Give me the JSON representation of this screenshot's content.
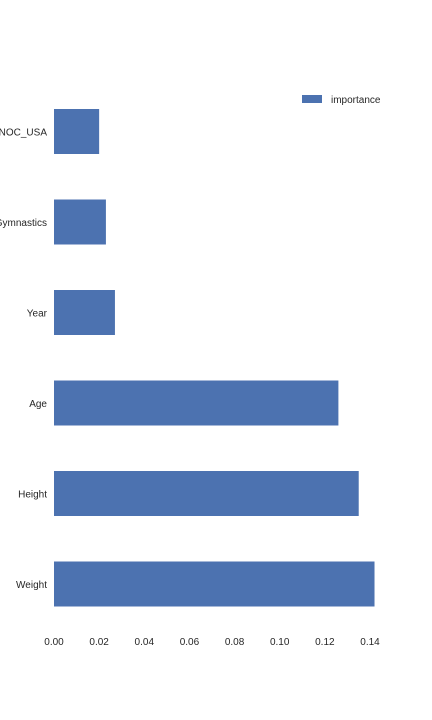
{
  "chart_data": {
    "type": "bar",
    "orientation": "horizontal",
    "categories": [
      "NOC_USA",
      "Sport_Gymnastics",
      "Year",
      "Age",
      "Height",
      "Weight"
    ],
    "series": [
      {
        "name": "importance",
        "values": [
          0.02,
          0.023,
          0.027,
          0.126,
          0.135,
          0.142
        ]
      }
    ],
    "x_ticks": [
      "0.00",
      "0.02",
      "0.04",
      "0.06",
      "0.08",
      "0.10",
      "0.12",
      "0.14"
    ],
    "xlim": [
      0,
      0.142
    ],
    "legend_position": "top-right",
    "grid": false,
    "colors": {
      "bar": "#4c72b0",
      "text": "#262626",
      "background": "#ffffff"
    }
  }
}
